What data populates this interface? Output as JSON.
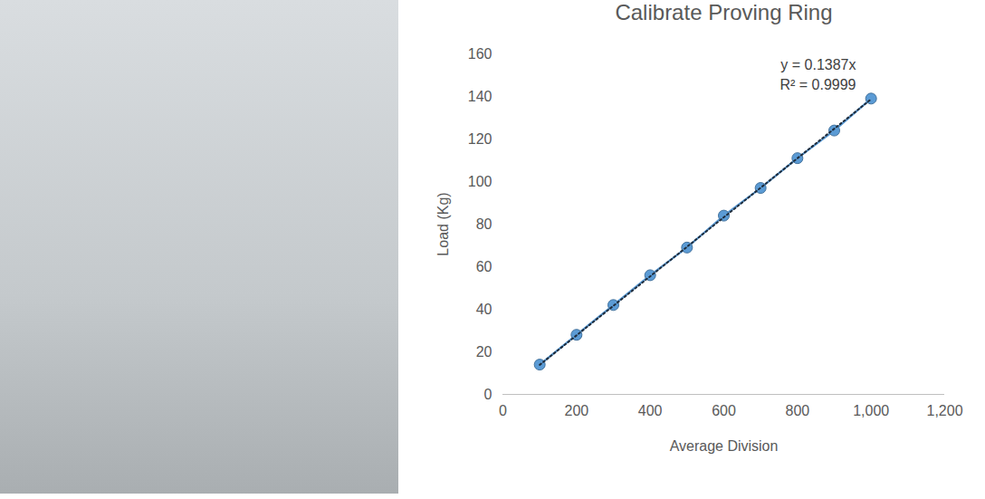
{
  "chart_data": {
    "type": "line",
    "title": "Calibrate Proving Ring",
    "x_label": "Average Division",
    "y_label": "Load (Kg)",
    "x": [
      100,
      200,
      300,
      400,
      500,
      600,
      700,
      800,
      900,
      1000
    ],
    "series": [
      {
        "name": "Load",
        "color": "#5b9bd5",
        "marker": "circle",
        "line_style": "solid",
        "values": [
          14,
          28,
          42,
          56,
          69,
          84,
          97,
          111,
          124,
          139
        ]
      }
    ],
    "trendline": {
      "x": [
        100,
        1000
      ],
      "y": [
        13.87,
        138.7
      ],
      "color": "#1f2d3d",
      "line_style": "dotted"
    },
    "annotations": [
      "y = 0.1387x",
      "R² = 0.9999"
    ],
    "xlim": [
      0,
      1200
    ],
    "xticks": [
      0,
      200,
      400,
      600,
      800,
      1000,
      1200
    ],
    "ylim": [
      0,
      160
    ],
    "yticks": [
      0,
      20,
      40,
      60,
      80,
      100,
      120,
      140,
      160
    ],
    "grid": false
  }
}
